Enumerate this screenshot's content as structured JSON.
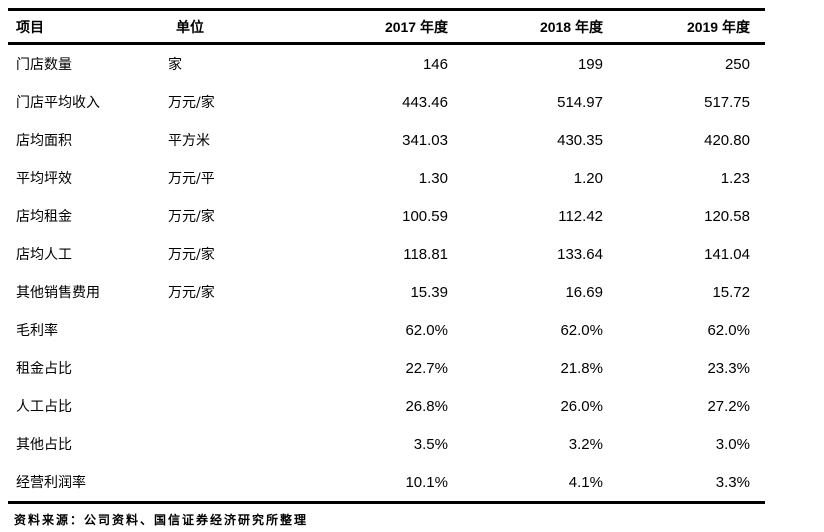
{
  "colors": {
    "text": "#000000",
    "border": "#000000",
    "background": "#ffffff"
  },
  "table": {
    "columns": [
      "项目",
      "单位",
      "2017 年度",
      "2018 年度",
      "2019 年度"
    ],
    "rows": [
      {
        "item": "门店数量",
        "unit": "家",
        "values": [
          "146",
          "199",
          "250"
        ]
      },
      {
        "item": "门店平均收入",
        "unit": "万元/家",
        "values": [
          "443.46",
          "514.97",
          "517.75"
        ]
      },
      {
        "item": "店均面积",
        "unit": "平方米",
        "values": [
          "341.03",
          "430.35",
          "420.80"
        ]
      },
      {
        "item": "平均坪效",
        "unit": "万元/平",
        "values": [
          "1.30",
          "1.20",
          "1.23"
        ]
      },
      {
        "item": "店均租金",
        "unit": "万元/家",
        "values": [
          "100.59",
          "112.42",
          "120.58"
        ]
      },
      {
        "item": "店均人工",
        "unit": "万元/家",
        "values": [
          "118.81",
          "133.64",
          "141.04"
        ]
      },
      {
        "item": "其他销售费用",
        "unit": "万元/家",
        "values": [
          "15.39",
          "16.69",
          "15.72"
        ]
      },
      {
        "item": "毛利率",
        "unit": "",
        "values": [
          "62.0%",
          "62.0%",
          "62.0%"
        ]
      },
      {
        "item": "租金占比",
        "unit": "",
        "values": [
          "22.7%",
          "21.8%",
          "23.3%"
        ]
      },
      {
        "item": "人工占比",
        "unit": "",
        "values": [
          "26.8%",
          "26.0%",
          "27.2%"
        ]
      },
      {
        "item": "其他占比",
        "unit": "",
        "values": [
          "3.5%",
          "3.2%",
          "3.0%"
        ]
      },
      {
        "item": "经营利润率",
        "unit": "",
        "values": [
          "10.1%",
          "4.1%",
          "3.3%"
        ]
      }
    ]
  },
  "footer": {
    "source": "资料来源：公司资料、国信证券经济研究所整理"
  }
}
